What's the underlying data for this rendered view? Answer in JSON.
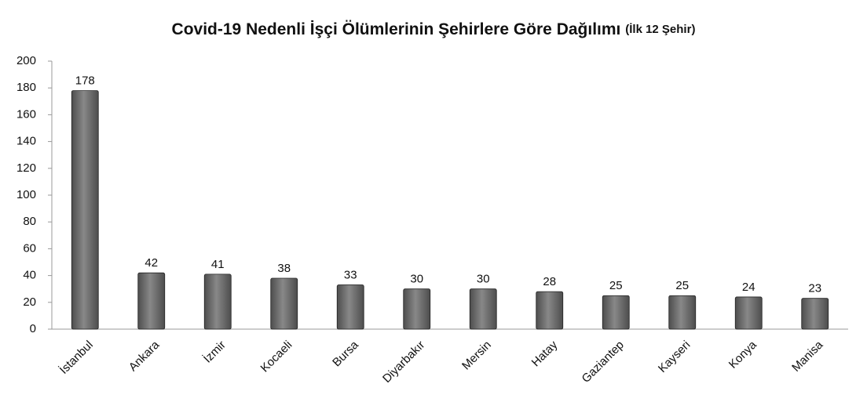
{
  "chart_data": {
    "type": "bar",
    "title": "Covid-19 Nedenli İşçi Ölümlerinin Şehirlere Göre Dağılımı",
    "subtitle": "(İlk 12 Şehir)",
    "categories": [
      "İstanbul",
      "Ankara",
      "İzmir",
      "Kocaeli",
      "Bursa",
      "Diyarbakır",
      "Mersin",
      "Hatay",
      "Gaziantep",
      "Kayseri",
      "Konya",
      "Manisa"
    ],
    "values": [
      178,
      42,
      41,
      38,
      33,
      30,
      30,
      28,
      25,
      25,
      24,
      23
    ],
    "color": "#4d4d4d",
    "ylim": [
      0,
      200
    ],
    "yticks": [
      0,
      20,
      40,
      60,
      80,
      100,
      120,
      140,
      160,
      180,
      200
    ],
    "grid": false
  }
}
